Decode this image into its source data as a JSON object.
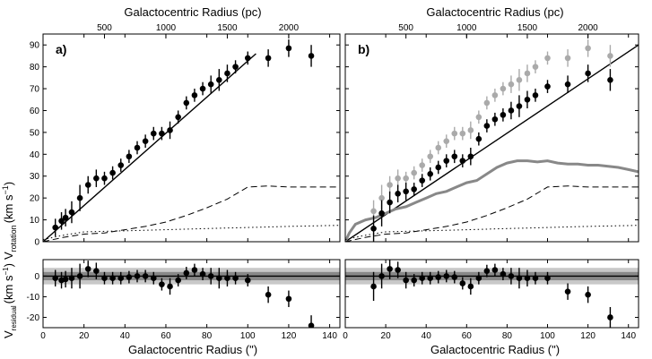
{
  "figure": {
    "top_axis_label": "Galactocentric Radius (pc)",
    "bottom_axis_label": "Galactocentric Radius (\")",
    "ylabel_main": "V",
    "ylabel_main_sub": "rotation",
    "ylabel_main_unit": "(km s",
    "ylabel_main_exp": "−1",
    "ylabel_main_close": ")",
    "ylabel_res": "V",
    "ylabel_res_sub": "residual",
    "ylabel_res_unit": "(km s",
    "ylabel_res_exp": "−1",
    "ylabel_res_close": ")"
  },
  "chart_data": [
    {
      "type": "scatter",
      "panel": "a)",
      "x_range": [
        0,
        145
      ],
      "y_range": [
        0,
        95
      ],
      "x_ticks": [
        0,
        20,
        40,
        60,
        80,
        100,
        120,
        140
      ],
      "y_ticks": [
        0,
        10,
        20,
        30,
        40,
        50,
        60,
        70,
        80,
        90
      ],
      "top_ticks_pc": [
        500,
        1000,
        1500,
        2000
      ],
      "top_ticks_at_arcsec": [
        30,
        60,
        90,
        120
      ],
      "grid": false,
      "series": [
        {
          "kind": "points",
          "color": "#000000",
          "x": [
            6,
            9,
            11,
            14,
            18,
            22,
            26,
            30,
            34,
            38,
            42,
            46,
            50,
            54,
            58,
            62,
            66,
            70,
            74,
            78,
            82,
            86,
            90,
            94,
            100,
            110,
            120,
            131
          ],
          "y": [
            6.5,
            9.5,
            11,
            13.5,
            20,
            26,
            29,
            29,
            31.5,
            35,
            39,
            43,
            46,
            49.5,
            49.5,
            51,
            57,
            63.5,
            67,
            70,
            72,
            74,
            77,
            80,
            84,
            84,
            88.5,
            85
          ],
          "err": [
            4,
            4,
            4,
            5,
            6,
            4,
            4,
            3,
            3,
            3,
            3,
            3,
            3,
            3,
            3,
            4,
            3,
            3,
            3,
            3,
            4,
            5,
            4,
            3,
            3,
            4,
            4,
            5
          ]
        },
        {
          "kind": "line",
          "style": "solid",
          "color": "#000000",
          "x": [
            0,
            104
          ],
          "y": [
            0,
            86
          ]
        },
        {
          "kind": "line",
          "style": "dashed",
          "color": "#000000",
          "x": [
            0,
            10,
            20,
            30,
            40,
            50,
            60,
            70,
            80,
            90,
            100,
            110,
            120,
            130,
            140,
            145
          ],
          "y": [
            0,
            2,
            3.5,
            4,
            5.5,
            7,
            9,
            12,
            15.5,
            19.5,
            25,
            25.5,
            25,
            25,
            25,
            25
          ]
        },
        {
          "kind": "line",
          "style": "dotted",
          "color": "#000000",
          "x": [
            0,
            10,
            20,
            40,
            60,
            80,
            100,
            120,
            145
          ],
          "y": [
            1,
            3,
            4.5,
            5,
            5.5,
            6,
            6.5,
            7,
            7.5
          ]
        }
      ]
    },
    {
      "type": "scatter",
      "panel": "b)",
      "x_range": [
        0,
        145
      ],
      "y_range": [
        0,
        95
      ],
      "x_ticks": [
        0,
        20,
        40,
        60,
        80,
        100,
        120,
        140
      ],
      "y_ticks": [
        0,
        10,
        20,
        30,
        40,
        50,
        60,
        70,
        80,
        90
      ],
      "top_ticks_pc": [
        500,
        1000,
        1500,
        2000
      ],
      "top_ticks_at_arcsec": [
        30,
        60,
        90,
        120
      ],
      "grid": false,
      "series": [
        {
          "kind": "points",
          "color": "#aaaaaa",
          "x": [
            14,
            18,
            22,
            26,
            30,
            34,
            38,
            42,
            46,
            50,
            54,
            58,
            62,
            66,
            70,
            74,
            78,
            82,
            86,
            90,
            94,
            100,
            110,
            120,
            131
          ],
          "y": [
            14,
            20,
            26,
            29,
            29,
            31.5,
            35,
            39,
            43,
            46,
            49.5,
            49.5,
            51,
            57,
            63.5,
            67,
            70,
            72,
            74,
            77,
            80,
            84,
            84,
            88.5,
            85
          ],
          "err": [
            5,
            6,
            4,
            4,
            3,
            3,
            3,
            3,
            3,
            3,
            3,
            3,
            4,
            3,
            3,
            3,
            3,
            4,
            5,
            4,
            3,
            3,
            4,
            4,
            5
          ]
        },
        {
          "kind": "points",
          "color": "#000000",
          "x": [
            14,
            18,
            22,
            26,
            30,
            34,
            38,
            42,
            46,
            50,
            54,
            58,
            62,
            66,
            70,
            74,
            78,
            82,
            86,
            90,
            94,
            100,
            110,
            120,
            131
          ],
          "y": [
            6,
            13,
            18,
            22,
            23,
            24,
            28,
            31,
            34,
            37,
            39,
            37,
            39,
            47,
            53,
            56,
            58,
            60,
            62,
            65,
            67,
            71,
            72,
            77,
            74
          ],
          "err": [
            6,
            6,
            5,
            4,
            4,
            3,
            3,
            3,
            3,
            3,
            3,
            3,
            4,
            3,
            3,
            3,
            3,
            4,
            5,
            4,
            3,
            3,
            4,
            4,
            5
          ]
        },
        {
          "kind": "line",
          "style": "solid",
          "color": "#000000",
          "x": [
            0,
            145
          ],
          "y": [
            0,
            90
          ]
        },
        {
          "kind": "line",
          "style": "solid",
          "color": "#888888",
          "width": 3,
          "x": [
            0,
            2,
            5,
            10,
            15,
            20,
            25,
            30,
            35,
            40,
            45,
            50,
            55,
            60,
            65,
            70,
            75,
            80,
            85,
            90,
            95,
            100,
            105,
            110,
            115,
            120,
            125,
            130,
            135,
            140,
            145
          ],
          "y": [
            0,
            4,
            8,
            10,
            11,
            13,
            15,
            16,
            18,
            20,
            22,
            23,
            25,
            27,
            28,
            31,
            34,
            36,
            37,
            37,
            36.5,
            37,
            36,
            35.5,
            35.5,
            35,
            35,
            34.5,
            34,
            33,
            32
          ]
        },
        {
          "kind": "line",
          "style": "dashed",
          "color": "#000000",
          "x": [
            0,
            10,
            20,
            30,
            40,
            50,
            60,
            70,
            80,
            90,
            100,
            110,
            120,
            130,
            140,
            145
          ],
          "y": [
            0,
            2,
            3.5,
            4,
            5.5,
            7,
            9,
            12,
            15.5,
            19.5,
            25,
            25.5,
            25,
            25,
            25,
            25
          ]
        },
        {
          "kind": "line",
          "style": "dotted",
          "color": "#000000",
          "x": [
            0,
            10,
            20,
            40,
            60,
            80,
            100,
            120,
            145
          ],
          "y": [
            1,
            3,
            4.5,
            5,
            5.5,
            6,
            6.5,
            7,
            7.5
          ]
        }
      ]
    },
    {
      "type": "scatter",
      "panel": "a) residual",
      "x_range": [
        0,
        145
      ],
      "y_range": [
        -25,
        8
      ],
      "x_ticks": [
        0,
        20,
        40,
        60,
        80,
        100,
        120,
        140
      ],
      "y_ticks": [
        -20,
        -10,
        0
      ],
      "bands": [
        {
          "half_width": 4,
          "color": "#c8c8c8"
        },
        {
          "half_width": 2,
          "color": "#888888"
        }
      ],
      "series": [
        {
          "kind": "points",
          "color": "#000000",
          "x": [
            6,
            9,
            11,
            14,
            18,
            22,
            26,
            30,
            34,
            38,
            42,
            46,
            50,
            54,
            58,
            62,
            66,
            70,
            74,
            78,
            82,
            86,
            90,
            94,
            100,
            110,
            120,
            131
          ],
          "y": [
            -1,
            -2,
            -1.5,
            -1,
            0,
            3.5,
            2.5,
            -1,
            -1,
            -1,
            -0.5,
            0,
            0,
            -1,
            -4,
            -5,
            -2,
            1.5,
            3,
            1,
            0,
            -1,
            -1,
            -1,
            -2,
            -9,
            -11,
            -24
          ],
          "err": [
            4,
            4,
            4,
            5,
            6,
            4,
            4,
            3,
            3,
            3,
            3,
            3,
            3,
            3,
            3,
            4,
            3,
            3,
            3,
            3,
            4,
            5,
            4,
            3,
            3,
            4,
            4,
            5
          ]
        }
      ]
    },
    {
      "type": "scatter",
      "panel": "b) residual",
      "x_range": [
        0,
        145
      ],
      "y_range": [
        -25,
        8
      ],
      "x_ticks": [
        0,
        20,
        40,
        60,
        80,
        100,
        120,
        140
      ],
      "y_ticks": [
        -20,
        -10,
        0
      ],
      "bands": [
        {
          "half_width": 4,
          "color": "#c8c8c8"
        },
        {
          "half_width": 2,
          "color": "#888888"
        }
      ],
      "series": [
        {
          "kind": "points",
          "color": "#000000",
          "x": [
            14,
            18,
            22,
            26,
            30,
            34,
            38,
            42,
            46,
            50,
            54,
            58,
            62,
            66,
            70,
            74,
            78,
            82,
            86,
            90,
            94,
            100,
            110,
            120,
            131
          ],
          "y": [
            -5,
            0,
            3.5,
            3,
            -2,
            -2,
            -1,
            -1,
            -0.5,
            0,
            -0.5,
            -3.5,
            -5,
            -1,
            2.5,
            3,
            1,
            0,
            -1,
            -1,
            -1,
            -1,
            -7.5,
            -9,
            -20
          ],
          "err": [
            7,
            6,
            5,
            4,
            4,
            3,
            3,
            3,
            3,
            3,
            3,
            3,
            4,
            3,
            3,
            3,
            3,
            4,
            5,
            4,
            3,
            3,
            4,
            4,
            5
          ]
        }
      ]
    }
  ]
}
